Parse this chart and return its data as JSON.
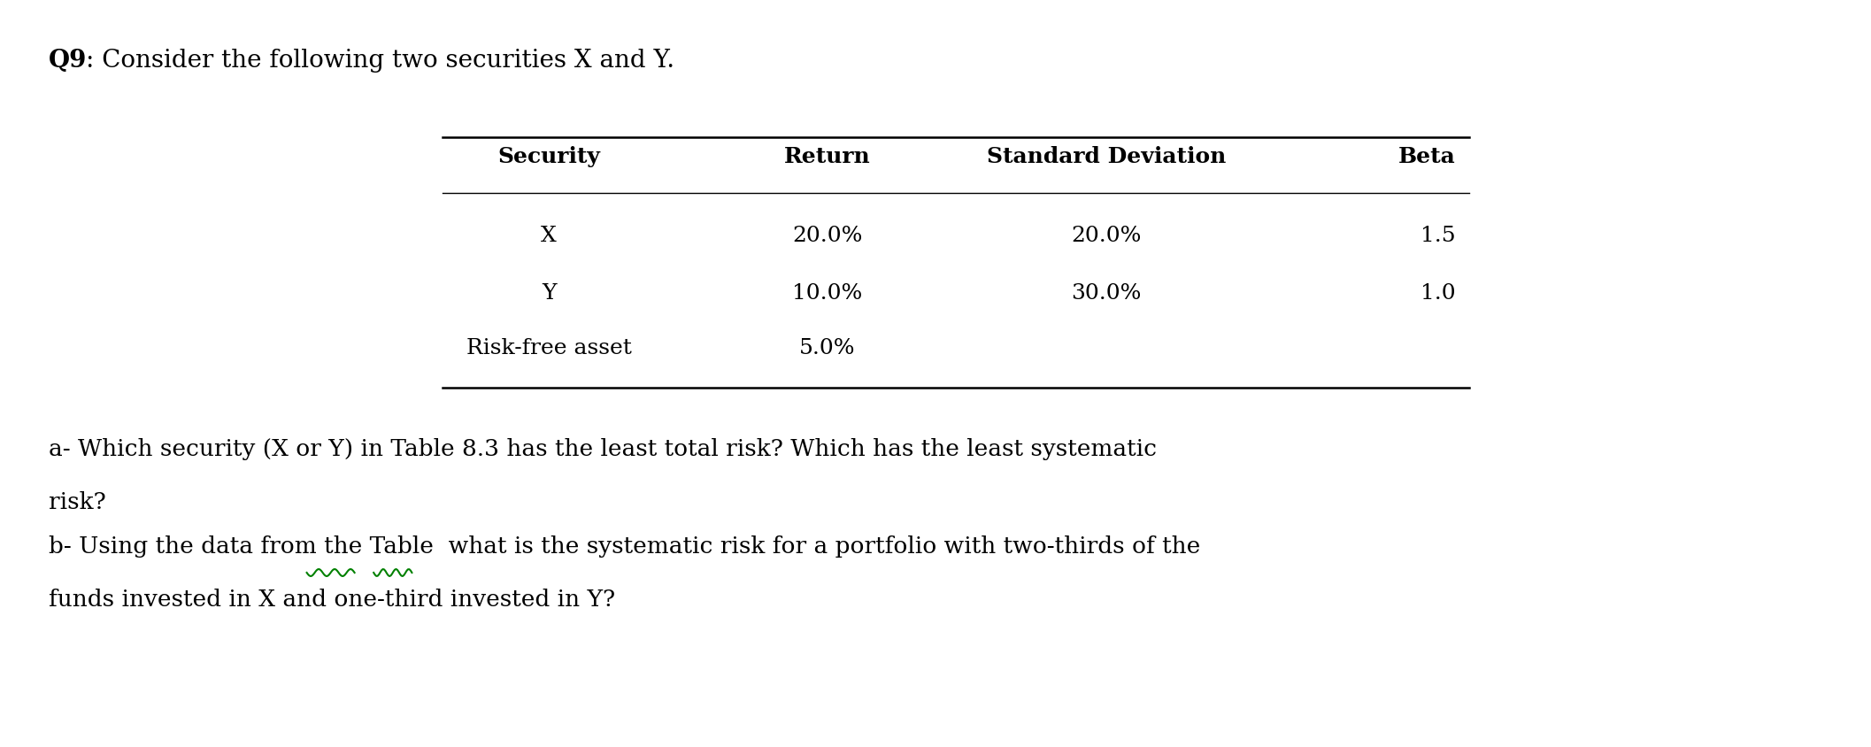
{
  "title_bold": "Q9",
  "title_colon": ": Consider the following two securities X and Y.",
  "table_headers": [
    "Security",
    "Return",
    "Standard Deviation",
    "Beta"
  ],
  "table_rows": [
    [
      "X",
      "20.0%",
      "20.0%",
      "1.5"
    ],
    [
      "Y",
      "10.0%",
      "30.0%",
      "1.0"
    ],
    [
      "Risk-free asset",
      "5.0%",
      "",
      ""
    ]
  ],
  "question_a_line1": "a- Which security (X or Y) in Table 8.3 has the least total risk? Which has the least systematic",
  "question_a_line2": "risk?",
  "question_b_line1": "b- Using the data from the Table  what is the systematic risk for a portfolio with two-thirds of the",
  "question_b_line2": "funds invested in X and one-third invested in Y?",
  "background_color": "#ffffff",
  "text_color": "#000000",
  "font_family": "DejaVu Serif",
  "title_fontsize": 20,
  "body_fontsize": 19,
  "table_fontsize": 18
}
